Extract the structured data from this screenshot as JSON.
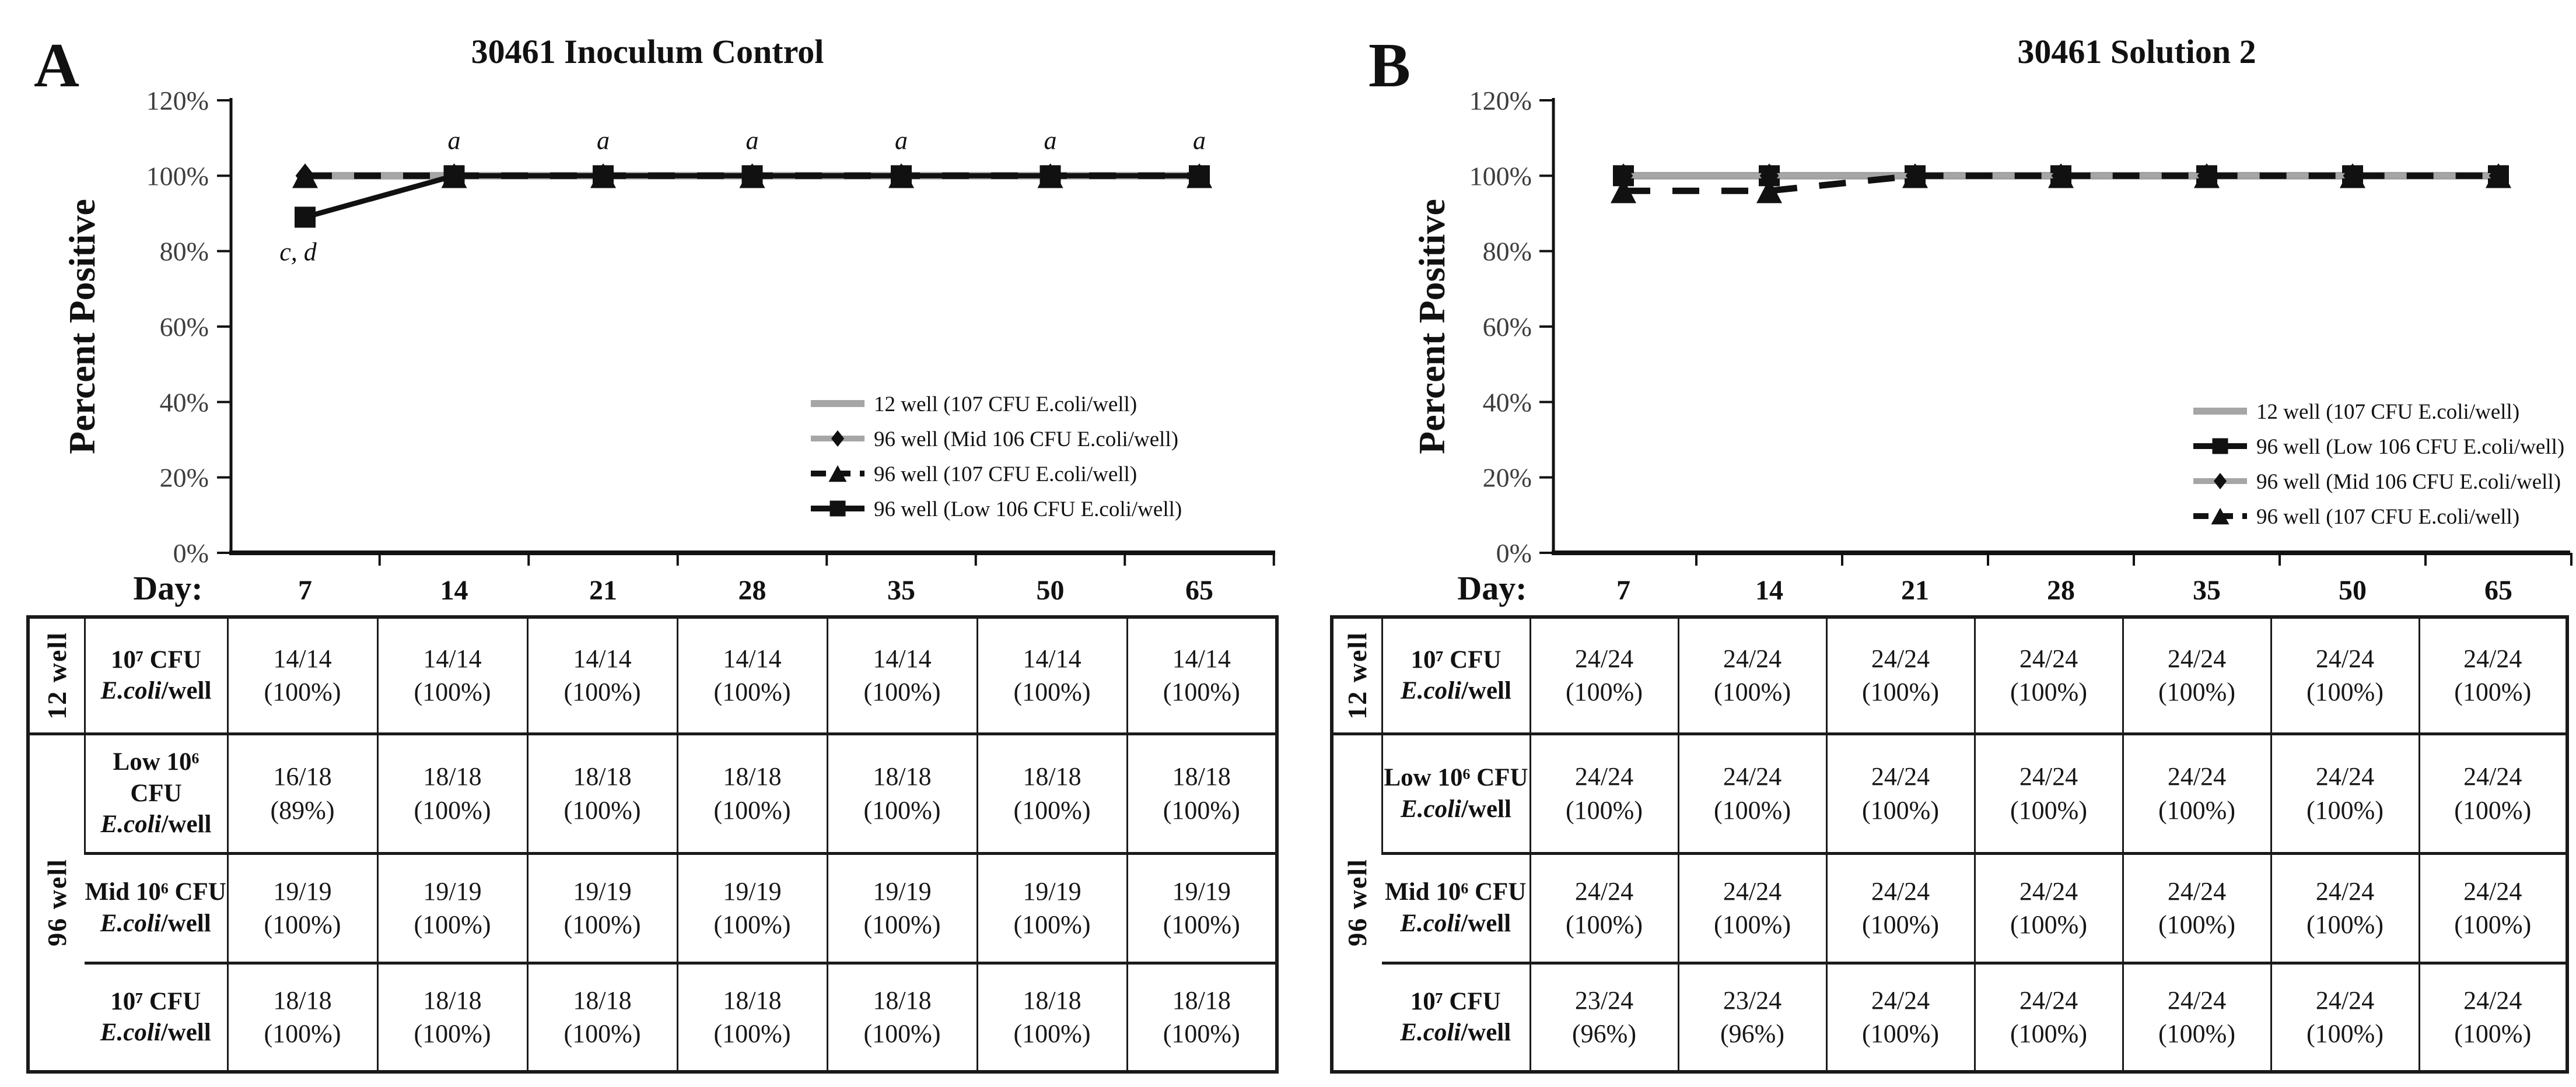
{
  "figure_colors": {
    "series_gray": "#a6a6a6",
    "series_black": "#111111",
    "table_border": "#1a1a1a"
  },
  "chart_data": [
    {
      "type": "line",
      "panel_label": "A",
      "title": "30461 Inoculum Control",
      "ylabel": "Percent Positive",
      "xlabel_prefix": "Day:",
      "x": [
        "7",
        "14",
        "21",
        "28",
        "35",
        "50",
        "65"
      ],
      "ylim": [
        0,
        120
      ],
      "y_ticks": [
        "0%",
        "20%",
        "40%",
        "60%",
        "80%",
        "100%",
        "120%"
      ],
      "grid": false,
      "legend_position": "inside lower right",
      "series": [
        {
          "name": "12 well (107 CFU E.coli/well)",
          "color": "#a6a6a6",
          "dash": false,
          "marker": "none",
          "values": [
            100,
            100,
            100,
            100,
            100,
            100,
            100
          ]
        },
        {
          "name": "96 well (Mid 106 CFU E.coli/well)",
          "color": "#a6a6a6",
          "dash": false,
          "marker": "diamond",
          "values": [
            100,
            100,
            100,
            100,
            100,
            100,
            100
          ]
        },
        {
          "name": "96 well (107 CFU E.coli/well)",
          "color": "#111111",
          "dash": true,
          "marker": "triangle",
          "values": [
            100,
            100,
            100,
            100,
            100,
            100,
            100
          ]
        },
        {
          "name": "96 well (Low 106 CFU E.coli/well)",
          "color": "#111111",
          "dash": false,
          "marker": "square",
          "values": [
            89,
            100,
            100,
            100,
            100,
            100,
            100
          ]
        }
      ],
      "legend": [
        {
          "label": "12 well (107 CFU E.coli/well)",
          "color": "#a6a6a6",
          "dash": false,
          "marker": "none"
        },
        {
          "label": "96 well (Mid 106 CFU E.coli/well)",
          "color": "#a6a6a6",
          "dash": false,
          "marker": "diamond"
        },
        {
          "label": "96 well (107 CFU E.coli/well)",
          "color": "#111111",
          "dash": true,
          "marker": "triangle"
        },
        {
          "label": "96 well (Low 106 CFU E.coli/well)",
          "color": "#111111",
          "dash": false,
          "marker": "square"
        }
      ],
      "annotations": [
        {
          "text": "c, d",
          "day": 0,
          "value": 89,
          "position": "below"
        },
        {
          "text": "a",
          "day": 1,
          "value": 100,
          "position": "above"
        },
        {
          "text": "a",
          "day": 2,
          "value": 100,
          "position": "above"
        },
        {
          "text": "a",
          "day": 3,
          "value": 100,
          "position": "above"
        },
        {
          "text": "a",
          "day": 4,
          "value": 100,
          "position": "above"
        },
        {
          "text": "a",
          "day": 5,
          "value": 100,
          "position": "above"
        },
        {
          "text": "a",
          "day": 6,
          "value": 100,
          "position": "above"
        }
      ]
    },
    {
      "type": "line",
      "panel_label": "B",
      "title": "30461 Solution 2",
      "ylabel": "Percent Positive",
      "xlabel_prefix": "Day:",
      "x": [
        "7",
        "14",
        "21",
        "28",
        "35",
        "50",
        "65"
      ],
      "ylim": [
        0,
        120
      ],
      "y_ticks": [
        "0%",
        "20%",
        "40%",
        "60%",
        "80%",
        "100%",
        "120%"
      ],
      "grid": false,
      "legend_position": "inside lower right",
      "series": [
        {
          "name": "12 well (107 CFU E.coli/well)",
          "color": "#a6a6a6",
          "dash": false,
          "marker": "none",
          "values": [
            100,
            100,
            100,
            100,
            100,
            100,
            100
          ]
        },
        {
          "name": "96 well (Low 106 CFU E.coli/well)",
          "color": "#111111",
          "dash": false,
          "marker": "square",
          "values": [
            100,
            100,
            100,
            100,
            100,
            100,
            100
          ]
        },
        {
          "name": "96 well (Mid 106 CFU E.coli/well)",
          "color": "#a6a6a6",
          "dash": false,
          "marker": "diamond",
          "values": [
            100,
            100,
            100,
            100,
            100,
            100,
            100
          ]
        },
        {
          "name": "96 well (107 CFU E.coli/well)",
          "color": "#111111",
          "dash": true,
          "marker": "triangle",
          "values": [
            96,
            96,
            100,
            100,
            100,
            100,
            100
          ]
        }
      ],
      "legend": [
        {
          "label": "12 well (107 CFU E.coli/well)",
          "color": "#a6a6a6",
          "dash": false,
          "marker": "none"
        },
        {
          "label": "96 well (Low 106 CFU E.coli/well)",
          "color": "#111111",
          "dash": false,
          "marker": "square"
        },
        {
          "label": "96 well (Mid 106 CFU E.coli/well)",
          "color": "#a6a6a6",
          "dash": false,
          "marker": "diamond"
        },
        {
          "label": "96 well (107 CFU E.coli/well)",
          "color": "#111111",
          "dash": true,
          "marker": "triangle"
        }
      ],
      "annotations": []
    }
  ],
  "tables": [
    {
      "rows": [
        {
          "group": "12 well",
          "group_span": 1,
          "label1": "10⁷ CFU",
          "label2_italic": "E.coli",
          "label2_rest": "/well",
          "cells": [
            [
              "14/14",
              "(100%)"
            ],
            [
              "14/14",
              "(100%)"
            ],
            [
              "14/14",
              "(100%)"
            ],
            [
              "14/14",
              "(100%)"
            ],
            [
              "14/14",
              "(100%)"
            ],
            [
              "14/14",
              "(100%)"
            ],
            [
              "14/14",
              "(100%)"
            ]
          ]
        },
        {
          "group": "96 well",
          "group_span": 3,
          "label1": "Low 10⁶ CFU",
          "label2_italic": "E.coli",
          "label2_rest": "/well",
          "cells": [
            [
              "16/18",
              "(89%)"
            ],
            [
              "18/18",
              "(100%)"
            ],
            [
              "18/18",
              "(100%)"
            ],
            [
              "18/18",
              "(100%)"
            ],
            [
              "18/18",
              "(100%)"
            ],
            [
              "18/18",
              "(100%)"
            ],
            [
              "18/18",
              "(100%)"
            ]
          ]
        },
        {
          "label1": "Mid 10⁶ CFU",
          "label2_italic": "E.coli",
          "label2_rest": "/well",
          "cells": [
            [
              "19/19",
              "(100%)"
            ],
            [
              "19/19",
              "(100%)"
            ],
            [
              "19/19",
              "(100%)"
            ],
            [
              "19/19",
              "(100%)"
            ],
            [
              "19/19",
              "(100%)"
            ],
            [
              "19/19",
              "(100%)"
            ],
            [
              "19/19",
              "(100%)"
            ]
          ]
        },
        {
          "label1": "10⁷ CFU",
          "label2_italic": "E.coli",
          "label2_rest": "/well",
          "cells": [
            [
              "18/18",
              "(100%)"
            ],
            [
              "18/18",
              "(100%)"
            ],
            [
              "18/18",
              "(100%)"
            ],
            [
              "18/18",
              "(100%)"
            ],
            [
              "18/18",
              "(100%)"
            ],
            [
              "18/18",
              "(100%)"
            ],
            [
              "18/18",
              "(100%)"
            ]
          ]
        }
      ]
    },
    {
      "rows": [
        {
          "group": "12 well",
          "group_span": 1,
          "label1": "10⁷ CFU",
          "label2_italic": "E.coli",
          "label2_rest": "/well",
          "cells": [
            [
              "24/24",
              "(100%)"
            ],
            [
              "24/24",
              "(100%)"
            ],
            [
              "24/24",
              "(100%)"
            ],
            [
              "24/24",
              "(100%)"
            ],
            [
              "24/24",
              "(100%)"
            ],
            [
              "24/24",
              "(100%)"
            ],
            [
              "24/24",
              "(100%)"
            ]
          ]
        },
        {
          "group": "96 well",
          "group_span": 3,
          "label1": "Low 10⁶ CFU",
          "label2_italic": "E.coli",
          "label2_rest": "/well",
          "cells": [
            [
              "24/24",
              "(100%)"
            ],
            [
              "24/24",
              "(100%)"
            ],
            [
              "24/24",
              "(100%)"
            ],
            [
              "24/24",
              "(100%)"
            ],
            [
              "24/24",
              "(100%)"
            ],
            [
              "24/24",
              "(100%)"
            ],
            [
              "24/24",
              "(100%)"
            ]
          ]
        },
        {
          "label1": "Mid 10⁶ CFU",
          "label2_italic": "E.coli",
          "label2_rest": "/well",
          "cells": [
            [
              "24/24",
              "(100%)"
            ],
            [
              "24/24",
              "(100%)"
            ],
            [
              "24/24",
              "(100%)"
            ],
            [
              "24/24",
              "(100%)"
            ],
            [
              "24/24",
              "(100%)"
            ],
            [
              "24/24",
              "(100%)"
            ],
            [
              "24/24",
              "(100%)"
            ]
          ]
        },
        {
          "label1": "10⁷ CFU",
          "label2_italic": "E.coli",
          "label2_rest": "/well",
          "cells": [
            [
              "23/24",
              "(96%)"
            ],
            [
              "23/24",
              "(96%)"
            ],
            [
              "24/24",
              "(100%)"
            ],
            [
              "24/24",
              "(100%)"
            ],
            [
              "24/24",
              "(100%)"
            ],
            [
              "24/24",
              "(100%)"
            ],
            [
              "24/24",
              "(100%)"
            ]
          ]
        }
      ]
    }
  ]
}
